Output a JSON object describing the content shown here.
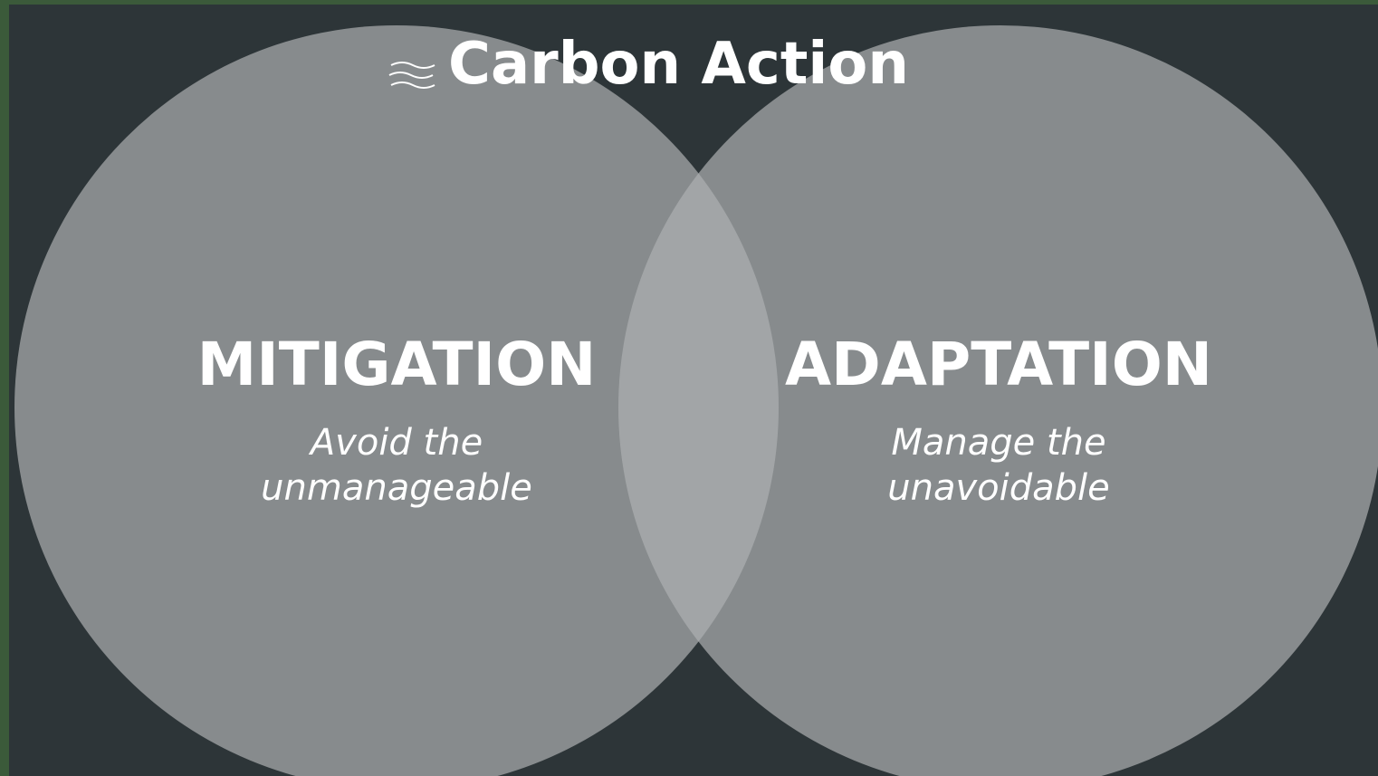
{
  "header": {
    "title": "Carbon Action"
  },
  "nodes": [
    {
      "label": "MITIGATION",
      "description": [
        "Avoid the",
        "unmanageable"
      ]
    },
    {
      "label": "ADAPTATION",
      "description": [
        "Manage the",
        "unavoidable"
      ]
    }
  ]
}
